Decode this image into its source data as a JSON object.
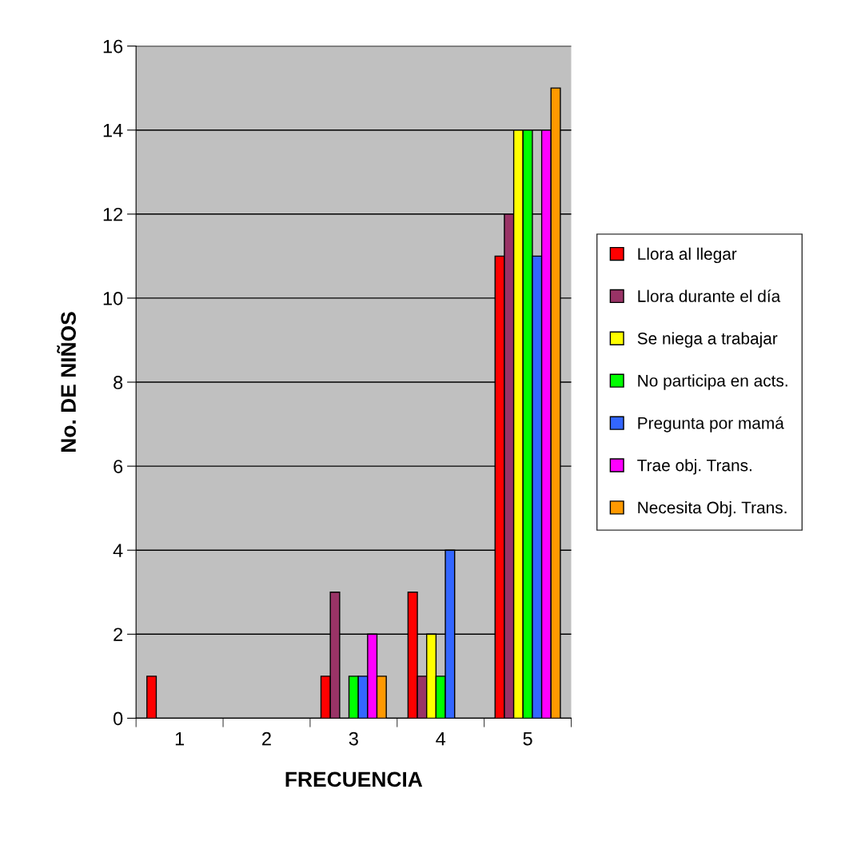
{
  "chart_data": {
    "type": "bar",
    "xlabel": "FRECUENCIA",
    "ylabel": "No. DE NIÑOS",
    "categories": [
      "1",
      "2",
      "3",
      "4",
      "5"
    ],
    "series": [
      {
        "name": "Llora al llegar",
        "color": "#ff0000",
        "values": [
          1,
          0,
          1,
          3,
          11
        ]
      },
      {
        "name": "Llora durante el día",
        "color": "#993366",
        "values": [
          0,
          0,
          3,
          1,
          12
        ]
      },
      {
        "name": "Se niega a trabajar",
        "color": "#ffff00",
        "values": [
          0,
          0,
          0,
          2,
          14
        ]
      },
      {
        "name": "No participa en acts.",
        "color": "#00ff00",
        "values": [
          0,
          0,
          1,
          1,
          14
        ]
      },
      {
        "name": "Pregunta por mamá",
        "color": "#3366ff",
        "values": [
          0,
          0,
          1,
          4,
          11
        ]
      },
      {
        "name": "Trae obj. Trans.",
        "color": "#ff00ff",
        "values": [
          0,
          0,
          2,
          0,
          14
        ]
      },
      {
        "name": "Necesita Obj. Trans.",
        "color": "#ff9900",
        "values": [
          0,
          0,
          1,
          0,
          15
        ]
      }
    ],
    "ylim": [
      0,
      16
    ],
    "yticks": [
      0,
      2,
      4,
      6,
      8,
      10,
      12,
      14,
      16
    ],
    "grid": "y",
    "legend": "right"
  }
}
